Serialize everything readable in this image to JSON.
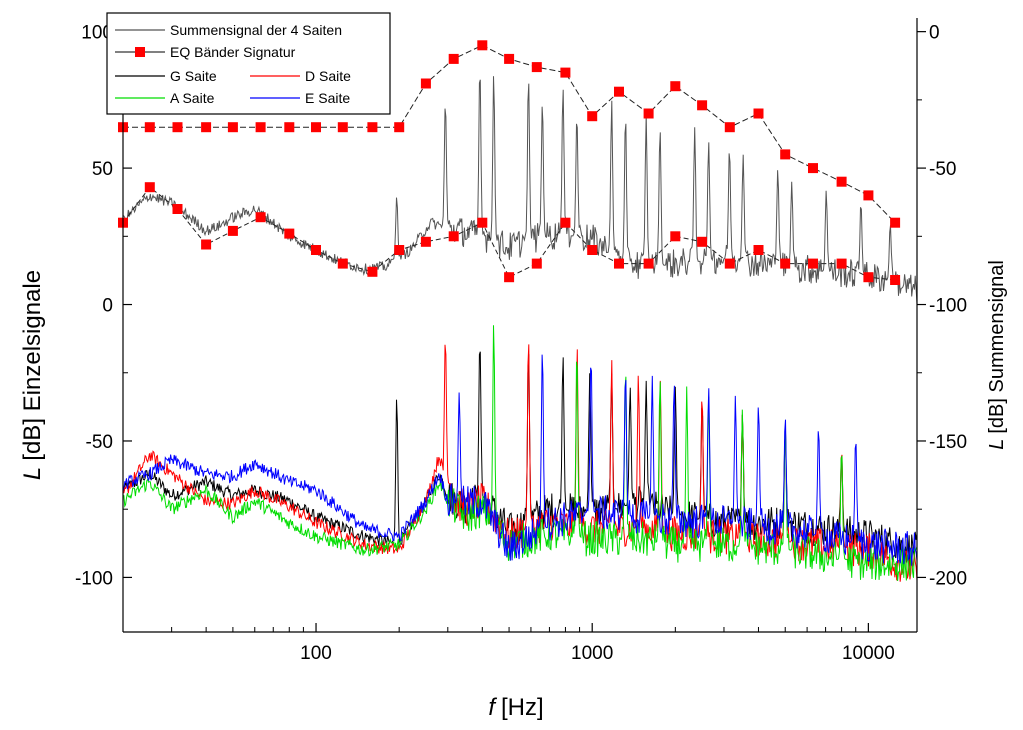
{
  "chart_data": {
    "type": "line",
    "title": "",
    "xlabel": {
      "symbol": "f",
      "unit": "[Hz]"
    },
    "ylabel_left": {
      "symbol": "L",
      "text": "[dB] Einzelsignale"
    },
    "ylabel_right": {
      "symbol": "L",
      "text": "[dB] Summensignal"
    },
    "xscale": "log",
    "xlim": [
      20,
      15000
    ],
    "ylim_left": [
      -120,
      105
    ],
    "ylim_right": [
      -220,
      5
    ],
    "x_ticks": [
      {
        "value": 100,
        "label": "100"
      },
      {
        "value": 1000,
        "label": "1000"
      },
      {
        "value": 10000,
        "label": "10000"
      }
    ],
    "y_left_ticks": [
      {
        "value": 100,
        "label": "100"
      },
      {
        "value": 50,
        "label": "50"
      },
      {
        "value": 0,
        "label": "0"
      },
      {
        "value": -50,
        "label": "-50"
      },
      {
        "value": -100,
        "label": "-100"
      }
    ],
    "y_right_ticks": [
      {
        "value": 0,
        "label": "0"
      },
      {
        "value": -50,
        "label": "-50"
      },
      {
        "value": -100,
        "label": "-100"
      },
      {
        "value": -150,
        "label": "-150"
      },
      {
        "value": -200,
        "label": "-200"
      }
    ],
    "legend": {
      "position": "top-left",
      "entries": [
        {
          "label": "Summensignal der 4 Saiten",
          "color": "#555555",
          "style": "line"
        },
        {
          "label": "EQ Bänder Signatur",
          "color": "#ff0000",
          "style": "line-square"
        },
        {
          "label": "G Saite",
          "color": "#000000",
          "style": "line"
        },
        {
          "label": "D Saite",
          "color": "#ff0000",
          "style": "line"
        },
        {
          "label": "A Saite",
          "color": "#00dd00",
          "style": "line"
        },
        {
          "label": "E Saite",
          "color": "#0000ff",
          "style": "line"
        }
      ]
    },
    "eq_signature": {
      "name": "EQ Bänder Signatur",
      "axis": "right",
      "color": "#ff0000",
      "upper": {
        "x": [
          20,
          25,
          31.5,
          40,
          50,
          63,
          80,
          100,
          125,
          160,
          200,
          250,
          315,
          400,
          500,
          630,
          800,
          1000,
          1250,
          1600,
          2000,
          2500,
          3150,
          4000,
          5000,
          6300,
          8000,
          10000,
          12500
        ],
        "y": [
          -35,
          -35,
          -35,
          -35,
          -35,
          -35,
          -35,
          -35,
          -35,
          -35,
          -35,
          -19,
          -10,
          -5,
          -10,
          -13,
          -15,
          -31,
          -22,
          -30,
          -20,
          -27,
          -35,
          -30,
          -45,
          -50,
          -55,
          -60,
          -70
        ]
      },
      "lower": {
        "x": [
          20,
          25,
          31.5,
          40,
          50,
          63,
          80,
          100,
          125,
          160,
          200,
          250,
          315,
          400,
          500,
          630,
          800,
          1000,
          1250,
          1600,
          2000,
          2500,
          3150,
          4000,
          5000,
          6300,
          8000,
          10000,
          12500
        ],
        "y": [
          -70,
          -57,
          -65,
          -78,
          -73,
          -68,
          -74,
          -80,
          -85,
          -88,
          -80,
          -77,
          -75,
          -70,
          -90,
          -85,
          -70,
          -80,
          -85,
          -85,
          -75,
          -77,
          -85,
          -80,
          -85,
          -85,
          -85,
          -90,
          -91
        ]
      }
    },
    "sum_signal": {
      "name": "Summensignal der 4 Saiten",
      "axis": "right",
      "color": "#555555",
      "baseline": {
        "x": [
          20,
          25,
          30,
          35,
          40,
          45,
          50,
          60,
          70,
          80,
          100,
          120,
          150,
          180,
          220,
          260,
          300,
          400,
          500,
          600,
          800,
          1000,
          1300,
          1600,
          2000,
          3000,
          4000,
          6000,
          9000,
          12000,
          15000
        ],
        "y": [
          -69,
          -60,
          -63,
          -68,
          -73,
          -71,
          -68,
          -65,
          -70,
          -75,
          -80,
          -84,
          -87,
          -86,
          -80,
          -70,
          -72,
          -75,
          -79,
          -76,
          -74,
          -76,
          -84,
          -86,
          -85,
          -83,
          -85,
          -87,
          -89,
          -91,
          -95
        ]
      },
      "peaks": [
        {
          "f": 196,
          "y": -60
        },
        {
          "f": 294,
          "y": -25
        },
        {
          "f": 392,
          "y": -12
        },
        {
          "f": 440,
          "y": -15
        },
        {
          "f": 588,
          "y": -16
        },
        {
          "f": 660,
          "y": -25
        },
        {
          "f": 784,
          "y": -20
        },
        {
          "f": 880,
          "y": -30
        },
        {
          "f": 1176,
          "y": -25
        },
        {
          "f": 1320,
          "y": -30
        },
        {
          "f": 1568,
          "y": -30
        },
        {
          "f": 1760,
          "y": -35
        },
        {
          "f": 2350,
          "y": -35
        },
        {
          "f": 2640,
          "y": -40
        },
        {
          "f": 3140,
          "y": -42
        },
        {
          "f": 3520,
          "y": -45
        },
        {
          "f": 4700,
          "y": -50
        },
        {
          "f": 5280,
          "y": -55
        },
        {
          "f": 7040,
          "y": -58
        },
        {
          "f": 9400,
          "y": -62
        },
        {
          "f": 12000,
          "y": -70
        }
      ]
    },
    "string_spectra": [
      {
        "name": "G Saite",
        "axis": "left",
        "color": "#000000",
        "baseline": {
          "x": [
            20,
            25,
            30,
            40,
            50,
            60,
            80,
            100,
            150,
            200,
            250,
            280,
            300,
            350,
            400,
            500,
            700,
            1000,
            1500,
            2000,
            3000,
            5000,
            10000,
            15000
          ],
          "y": [
            -68,
            -62,
            -70,
            -65,
            -70,
            -68,
            -72,
            -78,
            -85,
            -88,
            -72,
            -62,
            -70,
            -74,
            -70,
            -83,
            -75,
            -76,
            -73,
            -77,
            -80,
            -80,
            -85,
            -90
          ]
        },
        "peaks": [
          {
            "f": 196,
            "y": -33
          },
          {
            "f": 392,
            "y": -12
          },
          {
            "f": 588,
            "y": -15
          },
          {
            "f": 784,
            "y": -18
          },
          {
            "f": 980,
            "y": -25
          },
          {
            "f": 1176,
            "y": -25
          },
          {
            "f": 1372,
            "y": -30
          },
          {
            "f": 1568,
            "y": -28
          },
          {
            "f": 2000,
            "y": -30
          },
          {
            "f": 2500,
            "y": -35
          },
          {
            "f": 3500,
            "y": -40
          },
          {
            "f": 5000,
            "y": -45
          },
          {
            "f": 8000,
            "y": -55
          }
        ]
      },
      {
        "name": "D Saite",
        "axis": "left",
        "color": "#ff0000",
        "baseline": {
          "x": [
            20,
            25,
            30,
            40,
            50,
            60,
            80,
            100,
            150,
            200,
            250,
            280,
            300,
            350,
            400,
            500,
            700,
            1000,
            1500,
            2000,
            3000,
            5000,
            10000,
            15000
          ],
          "y": [
            -70,
            -55,
            -62,
            -72,
            -73,
            -68,
            -74,
            -80,
            -88,
            -90,
            -72,
            -55,
            -70,
            -75,
            -72,
            -85,
            -80,
            -82,
            -82,
            -84,
            -85,
            -87,
            -90,
            -98
          ]
        },
        "peaks": [
          {
            "f": 294,
            "y": -11
          },
          {
            "f": 588,
            "y": -11
          },
          {
            "f": 882,
            "y": -15
          },
          {
            "f": 1176,
            "y": -20
          },
          {
            "f": 1470,
            "y": -25
          },
          {
            "f": 1764,
            "y": -28
          },
          {
            "f": 2500,
            "y": -32
          },
          {
            "f": 3500,
            "y": -40
          },
          {
            "f": 5000,
            "y": -45
          },
          {
            "f": 8000,
            "y": -52
          }
        ]
      },
      {
        "name": "A Saite",
        "axis": "left",
        "color": "#00dd00",
        "baseline": {
          "x": [
            20,
            25,
            30,
            40,
            50,
            60,
            80,
            100,
            150,
            200,
            250,
            280,
            300,
            350,
            400,
            500,
            700,
            1000,
            1500,
            2000,
            3000,
            5000,
            10000,
            15000
          ],
          "y": [
            -72,
            -65,
            -75,
            -68,
            -78,
            -72,
            -80,
            -85,
            -90,
            -88,
            -75,
            -65,
            -72,
            -78,
            -75,
            -88,
            -84,
            -86,
            -86,
            -88,
            -88,
            -90,
            -95,
            -95
          ]
        },
        "peaks": [
          {
            "f": 440,
            "y": -6
          },
          {
            "f": 880,
            "y": -15
          },
          {
            "f": 1320,
            "y": -22
          },
          {
            "f": 1760,
            "y": -26
          },
          {
            "f": 2200,
            "y": -30
          },
          {
            "f": 2640,
            "y": -33
          },
          {
            "f": 3500,
            "y": -38
          },
          {
            "f": 5000,
            "y": -45
          },
          {
            "f": 8000,
            "y": -52
          }
        ]
      },
      {
        "name": "E Saite",
        "axis": "left",
        "color": "#0000ff",
        "baseline": {
          "x": [
            20,
            25,
            30,
            40,
            50,
            60,
            80,
            100,
            150,
            200,
            250,
            280,
            300,
            350,
            400,
            500,
            700,
            1000,
            1500,
            2000,
            3000,
            5000,
            10000,
            15000
          ],
          "y": [
            -66,
            -62,
            -57,
            -62,
            -63,
            -58,
            -65,
            -68,
            -82,
            -85,
            -72,
            -62,
            -72,
            -73,
            -72,
            -90,
            -80,
            -76,
            -78,
            -79,
            -80,
            -82,
            -88,
            -90
          ]
        },
        "peaks": [
          {
            "f": 330,
            "y": -32
          },
          {
            "f": 660,
            "y": -15
          },
          {
            "f": 990,
            "y": -18
          },
          {
            "f": 1320,
            "y": -24
          },
          {
            "f": 1650,
            "y": -26
          },
          {
            "f": 1980,
            "y": -28
          },
          {
            "f": 2640,
            "y": -30
          },
          {
            "f": 3300,
            "y": -33
          },
          {
            "f": 4000,
            "y": -36
          },
          {
            "f": 5000,
            "y": -40
          },
          {
            "f": 6600,
            "y": -44
          },
          {
            "f": 9000,
            "y": -48
          }
        ]
      }
    ]
  }
}
